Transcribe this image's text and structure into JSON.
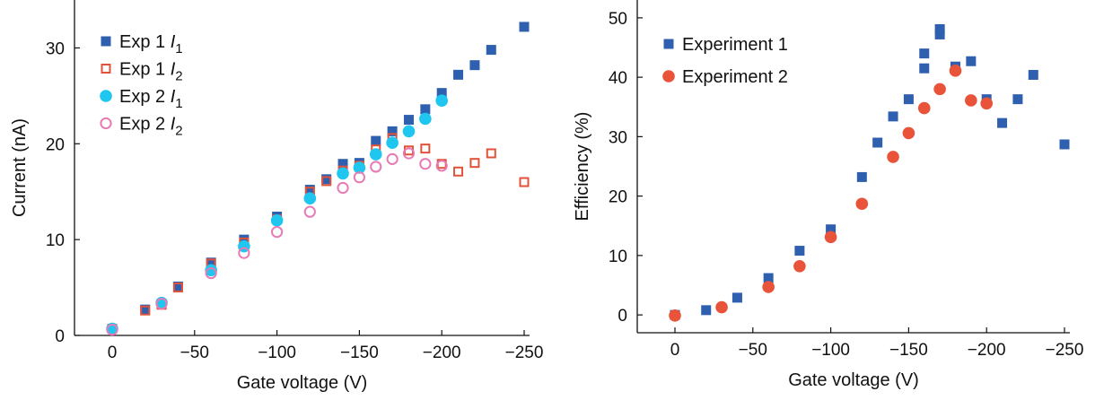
{
  "chart_data": [
    {
      "type": "scatter",
      "xlabel": "Gate voltage (V)",
      "ylabel": "Current (nA)",
      "xlim": [
        0,
        -250
      ],
      "ylim": [
        0,
        35
      ],
      "xticks": [
        0,
        -50,
        -100,
        -150,
        -200,
        -250
      ],
      "yticks": [
        0,
        10,
        20,
        30
      ],
      "xtick_labels": [
        "0",
        "−50",
        "−100",
        "−150",
        "−200",
        "−250"
      ],
      "ytick_labels": [
        "0",
        "10",
        "20",
        "30"
      ],
      "grid": false,
      "legend_position": "top-left",
      "series": [
        {
          "name": "Exp 1",
          "name_sub": "1",
          "name_var": "I",
          "color": "#2f5faf",
          "marker": "square-filled",
          "x": [
            0,
            -20,
            -30,
            -40,
            -60,
            -80,
            -100,
            -120,
            -130,
            -140,
            -150,
            -160,
            -170,
            -180,
            -190,
            -200,
            -210,
            -220,
            -230,
            -250
          ],
          "y": [
            0.7,
            2.7,
            3.3,
            5.1,
            7.6,
            10.0,
            12.4,
            15.2,
            16.3,
            17.9,
            18.0,
            20.3,
            21.3,
            22.5,
            23.6,
            25.3,
            27.2,
            28.2,
            29.8,
            32.2
          ]
        },
        {
          "name": "Exp 1",
          "name_sub": "2",
          "name_var": "I",
          "color": "#e0533a",
          "marker": "square-open",
          "x": [
            0,
            -20,
            -30,
            -40,
            -60,
            -80,
            -100,
            -120,
            -130,
            -140,
            -150,
            -160,
            -170,
            -180,
            -190,
            -200,
            -210,
            -220,
            -230,
            -250
          ],
          "y": [
            0.7,
            2.6,
            3.2,
            5.0,
            7.5,
            9.7,
            12.1,
            15.0,
            16.1,
            17.2,
            17.7,
            19.4,
            20.6,
            19.3,
            19.5,
            17.9,
            17.1,
            18.0,
            19.0,
            16.0
          ]
        },
        {
          "name": "Exp 2",
          "name_sub": "1",
          "name_var": "I",
          "color": "#1fc6ef",
          "marker": "circle-filled",
          "x": [
            0,
            -30,
            -60,
            -80,
            -100,
            -120,
            -140,
            -150,
            -160,
            -170,
            -180,
            -190,
            -200
          ],
          "y": [
            0.7,
            3.4,
            6.8,
            9.3,
            12.0,
            14.3,
            16.9,
            17.5,
            18.9,
            20.1,
            21.3,
            22.6,
            24.5
          ]
        },
        {
          "name": "Exp 2",
          "name_sub": "2",
          "name_var": "I",
          "color": "#e87ab5",
          "marker": "circle-open",
          "x": [
            0,
            -30,
            -60,
            -80,
            -100,
            -120,
            -140,
            -150,
            -160,
            -170,
            -180,
            -190,
            -200
          ],
          "y": [
            0.6,
            3.3,
            6.5,
            8.6,
            10.8,
            12.9,
            15.4,
            16.5,
            17.6,
            18.4,
            19.0,
            17.9,
            17.7
          ]
        }
      ]
    },
    {
      "type": "scatter",
      "xlabel": "Gate voltage (V)",
      "ylabel": "Efficiency (%)",
      "xlim": [
        0,
        -250
      ],
      "ylim": [
        -3,
        53
      ],
      "xticks": [
        0,
        -50,
        -100,
        -150,
        -200,
        -250
      ],
      "yticks": [
        0,
        10,
        20,
        30,
        40,
        50
      ],
      "xtick_labels": [
        "0",
        "−50",
        "−100",
        "−150",
        "−200",
        "−250"
      ],
      "ytick_labels": [
        "0",
        "10",
        "20",
        "30",
        "40",
        "50"
      ],
      "grid": false,
      "legend_position": "top-left",
      "series": [
        {
          "name": "Experiment 1",
          "color": "#2f5faf",
          "marker": "square-filled",
          "x": [
            0,
            -20,
            -40,
            -60,
            -80,
            -100,
            -120,
            -130,
            -140,
            -150,
            -160,
            -160,
            -170,
            -170,
            -180,
            -190,
            -200,
            -210,
            -220,
            -230,
            -250
          ],
          "y": [
            0.0,
            0.8,
            2.9,
            6.2,
            10.8,
            14.4,
            23.2,
            29.0,
            33.4,
            36.3,
            41.5,
            44.0,
            47.2,
            48.1,
            41.8,
            42.7,
            36.3,
            32.3,
            36.3,
            40.4,
            28.7
          ]
        },
        {
          "name": "Experiment 2",
          "color": "#e8533a",
          "marker": "circle-filled",
          "x": [
            0,
            -30,
            -60,
            -80,
            -100,
            -120,
            -140,
            -150,
            -160,
            -170,
            -180,
            -190,
            -200
          ],
          "y": [
            -0.1,
            1.3,
            4.7,
            8.2,
            13.1,
            18.7,
            26.6,
            30.6,
            34.8,
            38.0,
            41.1,
            36.1,
            35.6
          ]
        }
      ]
    }
  ]
}
